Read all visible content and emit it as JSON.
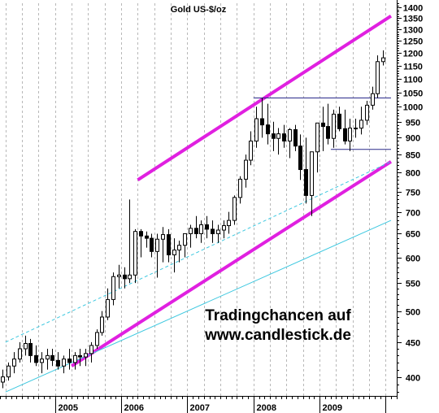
{
  "chart_data": {
    "type": "candlestick",
    "title": "Gold US-$/oz",
    "y_scale": "log",
    "ylim": [
      375,
      1420
    ],
    "y_ticks": [
      400,
      450,
      500,
      550,
      600,
      650,
      700,
      750,
      800,
      850,
      900,
      950,
      1000,
      1050,
      1100,
      1150,
      1200,
      1250,
      1300,
      1350,
      1400
    ],
    "x_ticks": [
      "2005",
      "2006",
      "2007",
      "2008",
      "2009",
      ""
    ],
    "xlim": [
      "2004-03",
      "2010-03"
    ],
    "grid": "vertical-dashed",
    "watermark": [
      "Tradingchancen auf",
      "www.candlestick.de"
    ],
    "series": [
      {
        "open": [
          393,
          400,
          415,
          425,
          440,
          448,
          430,
          420,
          425,
          430,
          423,
          415,
          425,
          420,
          430,
          428,
          433,
          445,
          465,
          490,
          520,
          562,
          565,
          558,
          565,
          655,
          645,
          640,
          612,
          638,
          648,
          605,
          615,
          625,
          650,
          662,
          650,
          670,
          660,
          650,
          658,
          668,
          680,
          735,
          782,
          834,
          890,
          960,
          940,
          912,
          898,
          912,
          890,
          925,
          875,
          808,
          740,
          858,
          946,
          935,
          898,
          975,
          928,
          890,
          930,
          930,
          955,
          1005,
          1045,
          1165
        ],
        "high": [
          410,
          420,
          435,
          450,
          460,
          455,
          445,
          435,
          440,
          440,
          435,
          430,
          440,
          435,
          440,
          440,
          450,
          470,
          500,
          540,
          570,
          585,
          580,
          730,
          660,
          660,
          655,
          650,
          650,
          665,
          660,
          640,
          635,
          650,
          670,
          690,
          680,
          690,
          680,
          670,
          680,
          700,
          740,
          790,
          850,
          920,
          1000,
          1030,
          1010,
          950,
          930,
          940,
          930,
          940,
          910,
          900,
          850,
          940,
          1000,
          1010,
          990,
          1000,
          990,
          960,
          960,
          1000,
          1020,
          1070,
          1190,
          1210
        ],
        "low": [
          385,
          395,
          405,
          420,
          430,
          420,
          415,
          405,
          410,
          415,
          410,
          405,
          410,
          410,
          415,
          415,
          420,
          440,
          460,
          485,
          510,
          540,
          540,
          550,
          550,
          600,
          620,
          600,
          560,
          590,
          590,
          570,
          590,
          600,
          620,
          640,
          630,
          640,
          630,
          630,
          640,
          650,
          670,
          720,
          760,
          820,
          870,
          900,
          880,
          860,
          850,
          870,
          840,
          860,
          780,
          720,
          690,
          800,
          860,
          880,
          870,
          920,
          880,
          860,
          900,
          910,
          940,
          990,
          1030,
          1150
        ],
        "close": [
          400,
          415,
          425,
          440,
          448,
          430,
          420,
          425,
          430,
          423,
          415,
          425,
          420,
          430,
          428,
          433,
          445,
          465,
          490,
          520,
          562,
          565,
          558,
          565,
          655,
          645,
          640,
          612,
          638,
          648,
          605,
          615,
          625,
          650,
          662,
          650,
          670,
          660,
          650,
          658,
          668,
          680,
          735,
          782,
          834,
          890,
          960,
          940,
          912,
          898,
          912,
          890,
          925,
          875,
          808,
          740,
          858,
          946,
          935,
          898,
          975,
          928,
          890,
          930,
          930,
          955,
          1005,
          1045,
          1165,
          1180
        ]
      }
    ],
    "lines": [
      {
        "kind": "channel-upper",
        "color": "#e020e0",
        "from": [
          2006.25,
          780
        ],
        "to": [
          2010.08,
          1360
        ]
      },
      {
        "kind": "channel-lower",
        "color": "#e020e0",
        "from": [
          2005.25,
          415
        ],
        "to": [
          2010.08,
          830
        ]
      },
      {
        "kind": "trend-solid",
        "color": "#3ec8e0",
        "from": [
          2004.25,
          380
        ],
        "to": [
          2010.08,
          680
        ]
      },
      {
        "kind": "trend-dashed",
        "color": "#3ec8e0",
        "from": [
          2004.25,
          450
        ],
        "to": [
          2010.08,
          830
        ]
      },
      {
        "kind": "resistance",
        "color": "#2a2a8a",
        "from": [
          2008.0,
          1030
        ],
        "to": [
          2010.08,
          1030
        ]
      },
      {
        "kind": "support",
        "color": "#2a2a8a",
        "from": [
          2009.17,
          865
        ],
        "to": [
          2010.08,
          865
        ]
      }
    ]
  },
  "colors": {
    "up_body": "#ffffff",
    "down_body": "#000000",
    "channel": "#e020e0",
    "trend": "#3ec8e0",
    "horizontal": "#2a2a8a"
  }
}
